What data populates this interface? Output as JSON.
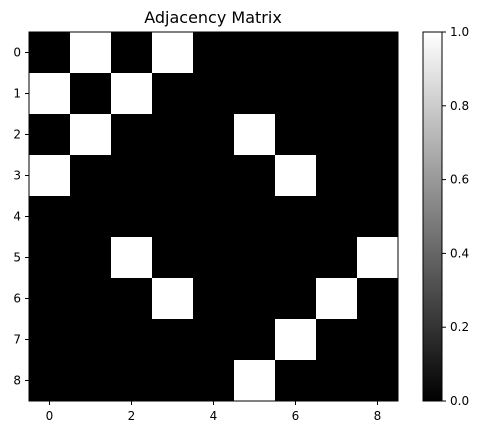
{
  "chart_data": {
    "type": "heatmap",
    "title": "Adjacency Matrix",
    "xlabel": "",
    "ylabel": "",
    "rows": 9,
    "cols": 9,
    "x_tick_labels": [
      "0",
      "2",
      "4",
      "6",
      "8"
    ],
    "x_tick_values": [
      0,
      2,
      4,
      6,
      8
    ],
    "y_tick_labels": [
      "0",
      "1",
      "2",
      "3",
      "4",
      "5",
      "6",
      "7",
      "8"
    ],
    "y_tick_values": [
      0,
      1,
      2,
      3,
      4,
      5,
      6,
      7,
      8
    ],
    "matrix": [
      [
        0,
        1,
        0,
        1,
        0,
        0,
        0,
        0,
        0
      ],
      [
        1,
        0,
        1,
        0,
        0,
        0,
        0,
        0,
        0
      ],
      [
        0,
        1,
        0,
        0,
        0,
        1,
        0,
        0,
        0
      ],
      [
        1,
        0,
        0,
        0,
        0,
        0,
        1,
        0,
        0
      ],
      [
        0,
        0,
        0,
        0,
        0,
        0,
        0,
        0,
        0
      ],
      [
        0,
        0,
        1,
        0,
        0,
        0,
        0,
        0,
        1
      ],
      [
        0,
        0,
        0,
        1,
        0,
        0,
        0,
        1,
        0
      ],
      [
        0,
        0,
        0,
        0,
        0,
        0,
        1,
        0,
        0
      ],
      [
        0,
        0,
        0,
        0,
        0,
        1,
        0,
        0,
        0
      ]
    ],
    "colormap": {
      "low": "#000000",
      "high": "#ffffff"
    },
    "colorbar": {
      "range": [
        0.0,
        1.0
      ],
      "tick_values": [
        0.0,
        0.2,
        0.4,
        0.6,
        0.8,
        1.0
      ],
      "tick_labels": [
        "0.0",
        "0.2",
        "0.4",
        "0.6",
        "0.8",
        "1.0"
      ]
    },
    "grid": false,
    "legend": "none"
  }
}
